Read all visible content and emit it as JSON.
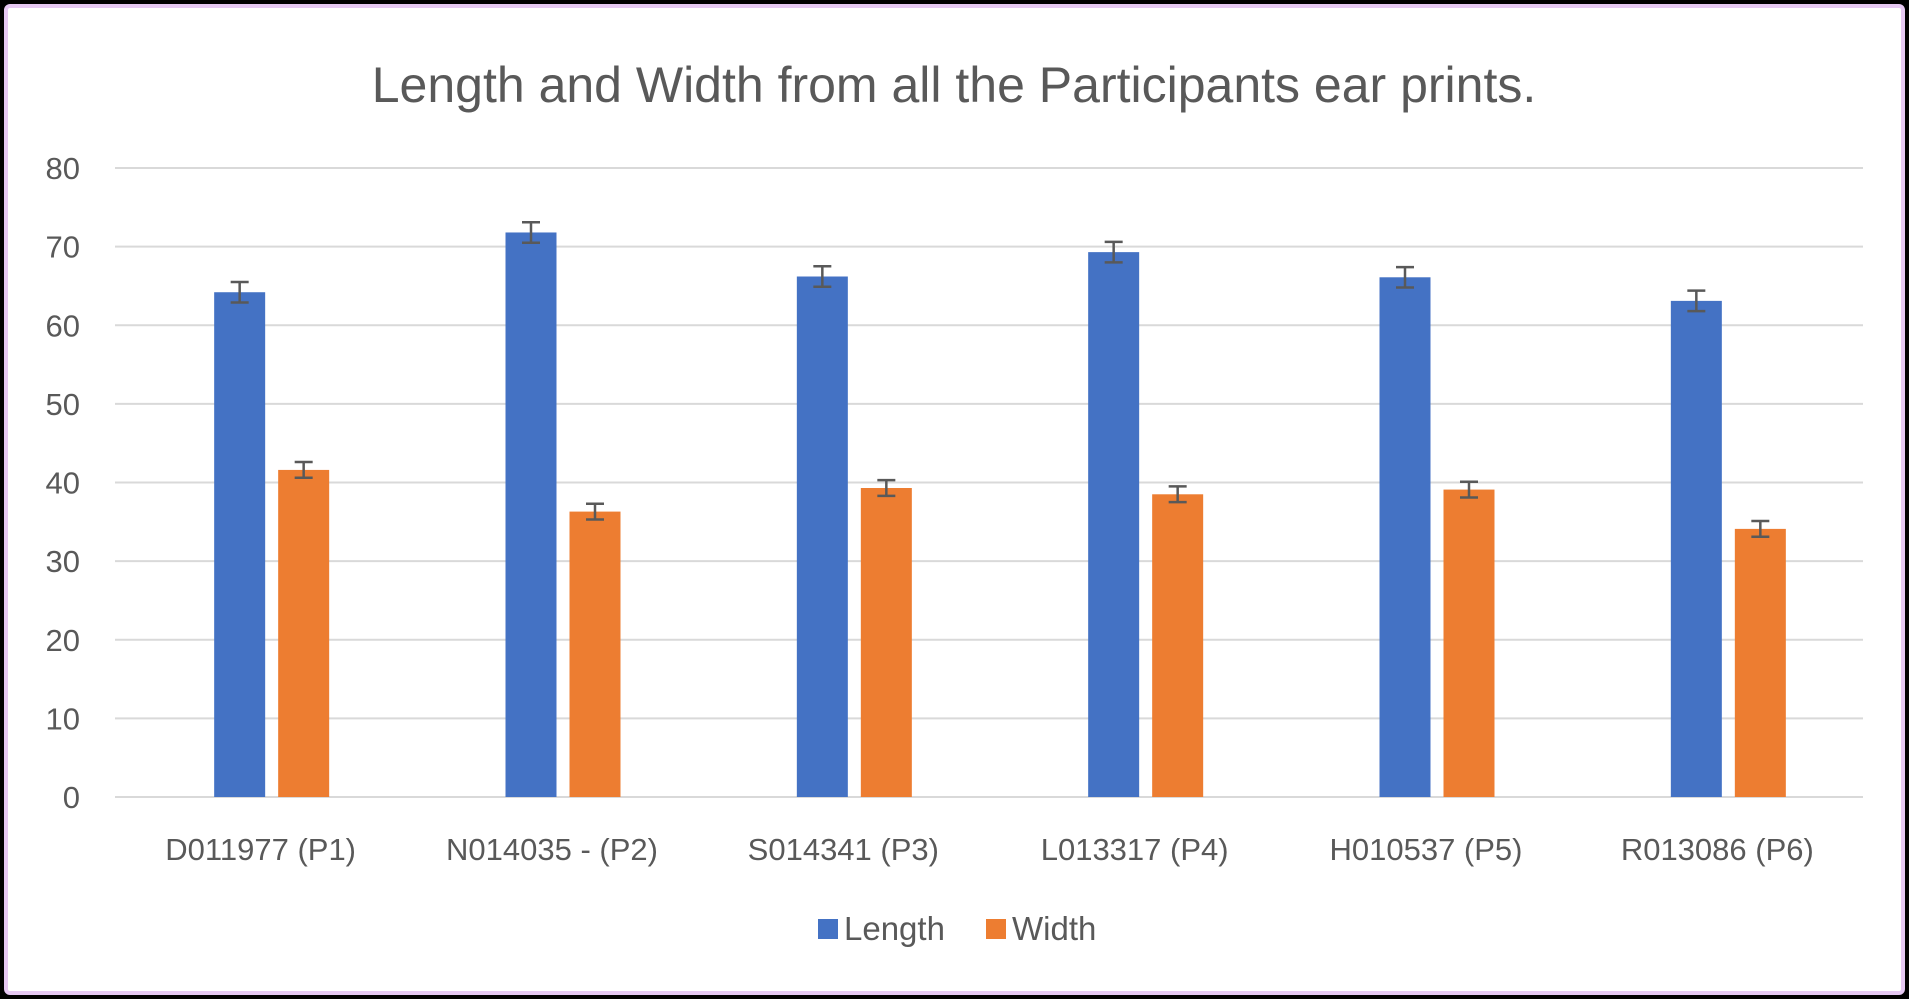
{
  "chart_data": {
    "type": "bar",
    "title": "Length and Width from all the Participants ear prints.",
    "xlabel": "",
    "ylabel": "",
    "ylim": [
      0,
      80
    ],
    "yticks": [
      0,
      10,
      20,
      30,
      40,
      50,
      60,
      70,
      80
    ],
    "grid": true,
    "legend_position": "bottom",
    "categories": [
      "D011977 (P1)",
      "N014035 - (P2)",
      "S014341 (P3)",
      "L013317 (P4)",
      "H010537 (P5)",
      "R013086 (P6)"
    ],
    "series": [
      {
        "name": "Length",
        "color": "#4472c4",
        "values": [
          64.2,
          71.8,
          66.2,
          69.3,
          66.1,
          63.1
        ],
        "error": [
          1.3,
          1.3,
          1.3,
          1.3,
          1.3,
          1.3
        ]
      },
      {
        "name": "Width",
        "color": "#ed7d31",
        "values": [
          41.6,
          36.3,
          39.3,
          38.5,
          39.1,
          34.1
        ],
        "error": [
          1.0,
          1.0,
          1.0,
          1.0,
          1.0,
          1.0
        ]
      }
    ]
  }
}
